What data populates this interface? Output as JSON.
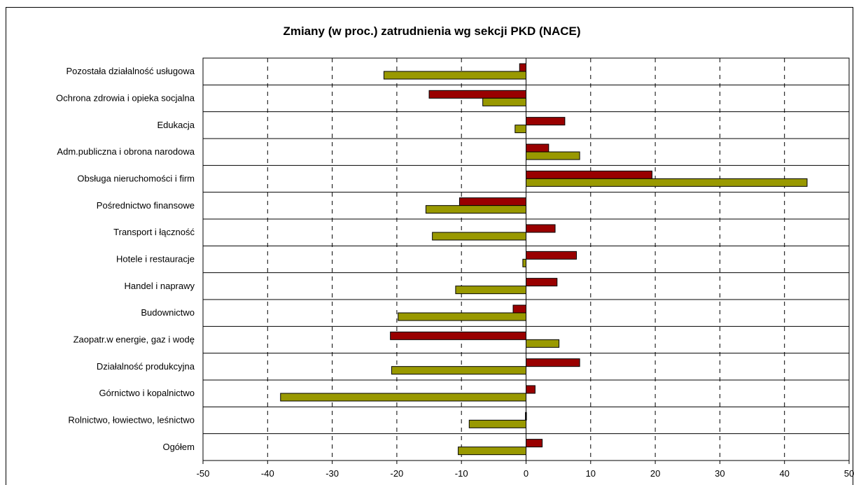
{
  "chart_data": {
    "type": "bar",
    "orientation": "horizontal",
    "title": "Zmiany (w proc.) zatrudnienia wg sekcji PKD (NACE)",
    "xlabel": "",
    "ylabel": "",
    "xlim": [
      -50,
      50
    ],
    "x_ticks": [
      -50,
      -40,
      -30,
      -20,
      -10,
      0,
      10,
      20,
      30,
      40,
      50
    ],
    "x_tick_labels": [
      "-50",
      "-40",
      "-30",
      "-20",
      "-10",
      "0",
      "10",
      "20",
      "30",
      "40",
      "50"
    ],
    "grid": "vertical-dashed",
    "legend": "none",
    "categories": [
      "Pozostała działalność usługowa",
      "Ochrona zdrowia i opieka socjalna",
      "Edukacja",
      "Adm.publiczna i obrona narodowa",
      "Obsługa nieruchomości i firm",
      "Pośrednictwo finansowe",
      "Transport i łączność",
      "Hotele i restauracje",
      "Handel i naprawy",
      "Budownictwo",
      "Zaopatr.w energie, gaz i wodę",
      "Działalność produkcyjna",
      "Górnictwo i kopalnictwo",
      "Rolnictwo, łowiectwo, leśnictwo",
      "Ogółem"
    ],
    "series": [
      {
        "color": "#990000",
        "values": [
          -1,
          -15,
          6,
          3.5,
          19.5,
          -10.3,
          4.5,
          7.8,
          4.8,
          -2,
          -21,
          8.3,
          1.4,
          -0.1,
          2.5
        ]
      },
      {
        "color": "#999900",
        "values": [
          -22,
          -6.7,
          -1.7,
          8.3,
          43.5,
          -15.5,
          -14.5,
          -0.5,
          -10.9,
          -19.8,
          5.1,
          -20.8,
          -38,
          -8.8,
          -10.5
        ]
      }
    ]
  }
}
